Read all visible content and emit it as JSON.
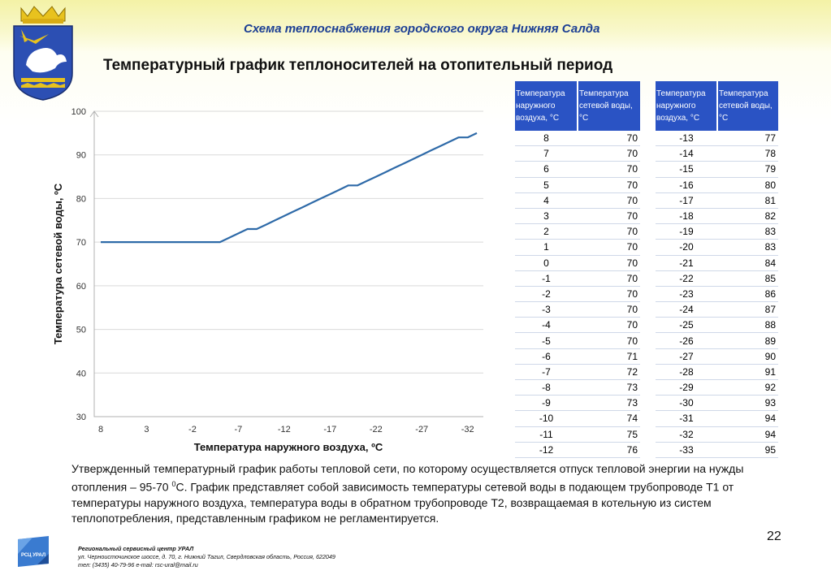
{
  "header": {
    "title": "Схема теплоснабжения городского округа Нижняя Салда"
  },
  "main_title": "Температурный график теплоносителей на отопительный период",
  "chart_data": {
    "type": "line",
    "ylabel": "Температура сетевой воды, ºС",
    "xlabel": "Температура наружного воздуха, ºС",
    "ylim": [
      30,
      100
    ],
    "yticks": [
      30,
      40,
      50,
      60,
      70,
      80,
      90,
      100
    ],
    "xticks": [
      "8",
      "3",
      "-2",
      "-7",
      "-12",
      "-17",
      "-22",
      "-27",
      "-32"
    ],
    "x": [
      8,
      7,
      6,
      5,
      4,
      3,
      2,
      1,
      0,
      -1,
      -2,
      -3,
      -4,
      -5,
      -6,
      -7,
      -8,
      -9,
      -10,
      -11,
      -12,
      -13,
      -14,
      -15,
      -16,
      -17,
      -18,
      -19,
      -20,
      -21,
      -22,
      -23,
      -24,
      -25,
      -26,
      -27,
      -28,
      -29,
      -30,
      -31,
      -32,
      -33
    ],
    "values": [
      70,
      70,
      70,
      70,
      70,
      70,
      70,
      70,
      70,
      70,
      70,
      70,
      70,
      70,
      71,
      72,
      73,
      73,
      74,
      75,
      76,
      77,
      78,
      79,
      80,
      81,
      82,
      83,
      83,
      84,
      85,
      86,
      87,
      88,
      89,
      90,
      91,
      92,
      93,
      94,
      94,
      95
    ],
    "color": "#2e6aa8",
    "grid": "horizontal"
  },
  "table": {
    "headers": [
      "Температура наружного воздуха, °С",
      "Температура сетевой воды, °С"
    ],
    "left_rows": [
      [
        "8",
        "70"
      ],
      [
        "7",
        "70"
      ],
      [
        "6",
        "70"
      ],
      [
        "5",
        "70"
      ],
      [
        "4",
        "70"
      ],
      [
        "3",
        "70"
      ],
      [
        "2",
        "70"
      ],
      [
        "1",
        "70"
      ],
      [
        "0",
        "70"
      ],
      [
        "-1",
        "70"
      ],
      [
        "-2",
        "70"
      ],
      [
        "-3",
        "70"
      ],
      [
        "-4",
        "70"
      ],
      [
        "-5",
        "70"
      ],
      [
        "-6",
        "71"
      ],
      [
        "-7",
        "72"
      ],
      [
        "-8",
        "73"
      ],
      [
        "-9",
        "73"
      ],
      [
        "-10",
        "74"
      ],
      [
        "-11",
        "75"
      ],
      [
        "-12",
        "76"
      ]
    ],
    "right_rows": [
      [
        "-13",
        "77"
      ],
      [
        "-14",
        "78"
      ],
      [
        "-15",
        "79"
      ],
      [
        "-16",
        "80"
      ],
      [
        "-17",
        "81"
      ],
      [
        "-18",
        "82"
      ],
      [
        "-19",
        "83"
      ],
      [
        "-20",
        "83"
      ],
      [
        "-21",
        "84"
      ],
      [
        "-22",
        "85"
      ],
      [
        "-23",
        "86"
      ],
      [
        "-24",
        "87"
      ],
      [
        "-25",
        "88"
      ],
      [
        "-26",
        "89"
      ],
      [
        "-27",
        "90"
      ],
      [
        "-28",
        "91"
      ],
      [
        "-29",
        "92"
      ],
      [
        "-30",
        "93"
      ],
      [
        "-31",
        "94"
      ],
      [
        "-32",
        "94"
      ],
      [
        "-33",
        "95"
      ]
    ]
  },
  "description": {
    "before": "Утвержденный температурный график работы тепловой сети, по которому осуществляется отпуск тепловой энергии на нужды отопления – 95-70 ",
    "sup": "0",
    "after": "С. График представляет собой зависимость температуры сетевой воды в подающем трубопроводе Т1 от температуры наружного воздуха, температура  воды в обратном трубопроводе Т2, возвращаемая в котельную из систем теплопотребления, представленным графиком не регламентируется."
  },
  "page_number": "22",
  "footer": {
    "logo_text": "РСЦ УРАЛ",
    "org": "Региональный сервисный центр УРАЛ",
    "address": "ул. Черноисточинское шоссе, д. 70, г. Нижний Тагил, Свердловская область, Россия, 622049",
    "contacts": "тел: (3435) 40-79-96 e-mail: rsc-ural@mail.ru"
  }
}
